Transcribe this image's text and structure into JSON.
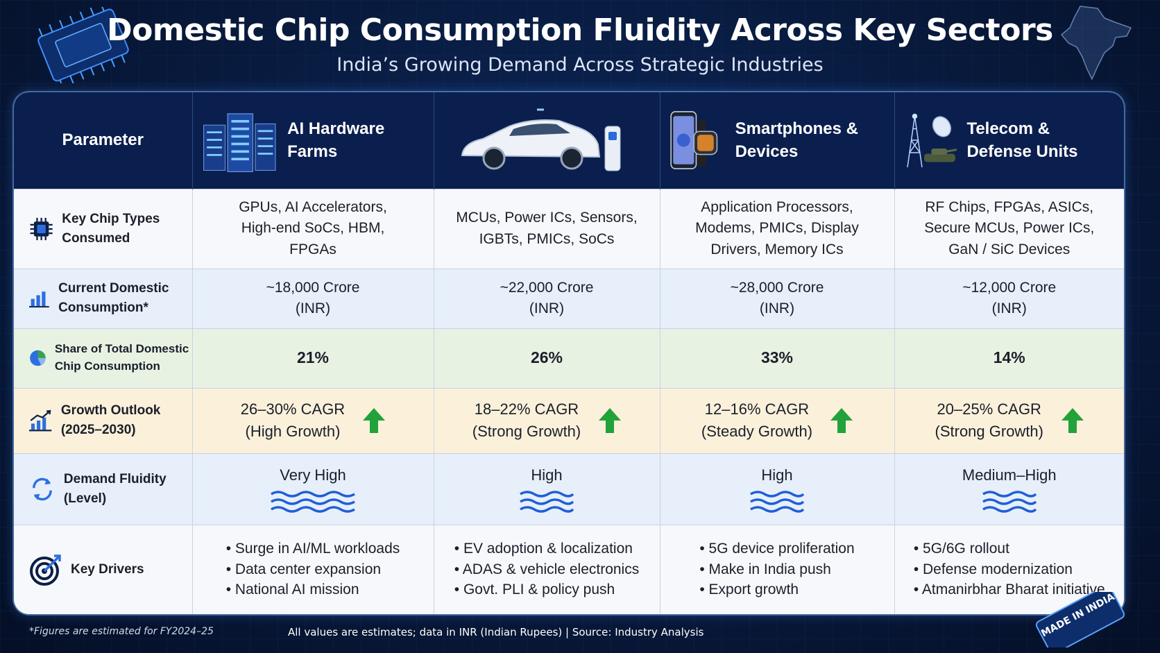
{
  "title": "Domestic Chip Consumption Fluidity Across Key Sectors",
  "subtitle": "India’s Growing Demand Across Strategic Industries",
  "header": {
    "parameter": "Parameter",
    "sectors": [
      {
        "label": "AI Hardware Farms",
        "icon": "server-rack-icon"
      },
      {
        "label": "",
        "icon": "electric-car-icon"
      },
      {
        "label": "Smartphones & Devices",
        "icon": "smartphone-watch-icon"
      },
      {
        "label": "Telecom & Defense Units",
        "icon": "telecom-tower-tank-icon"
      }
    ]
  },
  "rows": {
    "chip_types": {
      "label": "Key Chip Types Consumed",
      "icon": "chip-icon",
      "values": [
        "GPUs, AI Accelerators, High-end SoCs, HBM, FPGAs",
        "MCUs, Power ICs, Sensors, IGBTs, PMICs, SoCs",
        "Application Processors, Modems, PMICs, Display Drivers, Memory ICs",
        "RF Chips, FPGAs, ASICs, Secure MCUs, Power ICs, GaN / SiC Devices"
      ]
    },
    "consumption": {
      "label": "Current Domestic Consumption*",
      "icon": "bar-chart-icon",
      "values": [
        {
          "amount": "~18,000 Crore",
          "unit": "(INR)"
        },
        {
          "amount": "~22,000 Crore",
          "unit": "(INR)"
        },
        {
          "amount": "~28,000 Crore",
          "unit": "(INR)"
        },
        {
          "amount": "~12,000 Crore",
          "unit": "(INR)"
        }
      ]
    },
    "share": {
      "label": "Share of Total Domestic Chip Consumption",
      "icon": "pie-chart-icon",
      "values": [
        "21%",
        "26%",
        "33%",
        "14%"
      ]
    },
    "growth": {
      "label": "Growth Outlook (2025–2030)",
      "icon": "growth-chart-icon",
      "values": [
        {
          "cagr": "26–30% CAGR",
          "note": "(High Growth)"
        },
        {
          "cagr": "18–22% CAGR",
          "note": "(Strong Growth)"
        },
        {
          "cagr": "12–16% CAGR",
          "note": "(Steady Growth)"
        },
        {
          "cagr": "20–25% CAGR",
          "note": "(Strong Growth)"
        }
      ],
      "arrow_color": "#22a23a"
    },
    "fluidity": {
      "label": "Demand Fluidity (Level)",
      "icon": "refresh-cycle-icon",
      "values": [
        "Very High",
        "High",
        "High",
        "Medium–High"
      ],
      "wave_color": "#1f5fd6"
    },
    "drivers": {
      "label": "Key Drivers",
      "icon": "target-icon",
      "values": [
        [
          "Surge in AI/ML workloads",
          "Data center expansion",
          "National AI mission"
        ],
        [
          "EV adoption & localization",
          "ADAS & vehicle electronics",
          "Govt. PLI & policy push"
        ],
        [
          "5G device proliferation",
          "Make in India push",
          "Export growth"
        ],
        [
          "5G/6G rollout",
          "Defense modernization",
          "Atmanirbhar Bharat initiative"
        ]
      ]
    }
  },
  "footnote": "*Figures are estimated for FY2024–25",
  "source": "All values are estimates; data in INR (Indian Rupees) | Source: Industry Analysis",
  "badge": "MADE IN INDIA",
  "colors": {
    "header_bg": "#0a1f4e",
    "accent_blue": "#1f5fd6",
    "green": "#22a23a"
  }
}
